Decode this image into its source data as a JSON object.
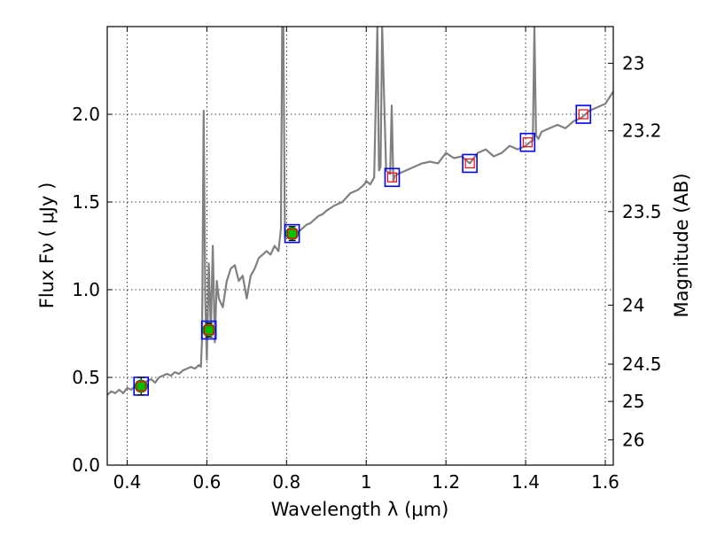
{
  "chart_data": {
    "type": "line",
    "title": "",
    "xlabel": "Wavelength  λ (μm)",
    "ylabel": "Flux  Fν  ( μJy )",
    "y2label": "Magnitude (AB)",
    "xlim": [
      0.35,
      1.62
    ],
    "ylim": [
      0.0,
      2.5
    ],
    "grid": true,
    "x_ticks": [
      {
        "value": 0.4,
        "label": "0.4"
      },
      {
        "value": 0.6,
        "label": "0.6"
      },
      {
        "value": 0.8,
        "label": "0.8"
      },
      {
        "value": 1.0,
        "label": "1"
      },
      {
        "value": 1.2,
        "label": "1.2"
      },
      {
        "value": 1.4,
        "label": "1.4"
      },
      {
        "value": 1.6,
        "label": "1.6"
      }
    ],
    "y_ticks": [
      {
        "value": 0.0,
        "label": "0.0"
      },
      {
        "value": 0.5,
        "label": "0.5"
      },
      {
        "value": 1.0,
        "label": "1.0"
      },
      {
        "value": 1.5,
        "label": "1.5"
      },
      {
        "value": 2.0,
        "label": "2.0"
      }
    ],
    "y2_ticks": [
      {
        "value": 23,
        "label": "23"
      },
      {
        "value": 23.2,
        "label": "23.2"
      },
      {
        "value": 23.5,
        "label": "23.5"
      },
      {
        "value": 24,
        "label": "24"
      },
      {
        "value": 24.5,
        "label": "24.5"
      },
      {
        "value": 25,
        "label": "25"
      },
      {
        "value": 26,
        "label": "26"
      }
    ],
    "colors": {
      "spectrum": "#808080",
      "box": "#0000ff",
      "detection": "#00c000",
      "model_point": "#ff0000",
      "grid": "#000000"
    },
    "spectrum": {
      "x": [
        0.35,
        0.36,
        0.37,
        0.38,
        0.39,
        0.4,
        0.41,
        0.42,
        0.43,
        0.44,
        0.45,
        0.46,
        0.47,
        0.48,
        0.49,
        0.5,
        0.51,
        0.52,
        0.53,
        0.54,
        0.55,
        0.56,
        0.57,
        0.58,
        0.585,
        0.588,
        0.592,
        0.596,
        0.6,
        0.605,
        0.61,
        0.615,
        0.62,
        0.625,
        0.63,
        0.64,
        0.65,
        0.66,
        0.67,
        0.68,
        0.69,
        0.7,
        0.71,
        0.72,
        0.73,
        0.74,
        0.75,
        0.76,
        0.77,
        0.78,
        0.786,
        0.789,
        0.792,
        0.796,
        0.8,
        0.81,
        0.82,
        0.83,
        0.84,
        0.85,
        0.86,
        0.87,
        0.88,
        0.89,
        0.9,
        0.92,
        0.94,
        0.96,
        0.98,
        0.995,
        1.0,
        1.01,
        1.02,
        1.028,
        1.032,
        1.036,
        1.04,
        1.05,
        1.06,
        1.064,
        1.068,
        1.072,
        1.08,
        1.1,
        1.12,
        1.14,
        1.16,
        1.18,
        1.2,
        1.22,
        1.24,
        1.26,
        1.28,
        1.3,
        1.32,
        1.34,
        1.36,
        1.38,
        1.4,
        1.41,
        1.418,
        1.422,
        1.426,
        1.432,
        1.44,
        1.46,
        1.48,
        1.5,
        1.52,
        1.54,
        1.56,
        1.58,
        1.6,
        1.62
      ],
      "y": [
        0.4,
        0.42,
        0.41,
        0.43,
        0.41,
        0.44,
        0.43,
        0.45,
        0.47,
        0.46,
        0.48,
        0.49,
        0.47,
        0.5,
        0.51,
        0.52,
        0.51,
        0.53,
        0.52,
        0.54,
        0.55,
        0.56,
        0.55,
        0.57,
        0.56,
        0.72,
        2.02,
        0.95,
        0.6,
        1.15,
        0.76,
        1.25,
        0.7,
        1.05,
        0.95,
        0.9,
        1.05,
        1.12,
        1.14,
        1.05,
        1.08,
        0.95,
        1.08,
        1.12,
        1.18,
        1.2,
        1.22,
        1.2,
        1.25,
        1.22,
        1.35,
        2.5,
        2.5,
        1.3,
        1.32,
        1.3,
        1.32,
        1.33,
        1.35,
        1.37,
        1.38,
        1.4,
        1.42,
        1.43,
        1.45,
        1.48,
        1.5,
        1.55,
        1.57,
        1.6,
        1.62,
        1.6,
        1.64,
        2.5,
        1.68,
        1.7,
        2.5,
        1.68,
        1.66,
        2.05,
        1.62,
        1.65,
        1.66,
        1.68,
        1.7,
        1.72,
        1.73,
        1.72,
        1.78,
        1.75,
        1.76,
        1.72,
        1.78,
        1.8,
        1.76,
        1.78,
        1.82,
        1.8,
        1.82,
        1.84,
        1.85,
        2.5,
        1.88,
        1.86,
        1.9,
        1.92,
        1.94,
        1.92,
        1.96,
        1.98,
        2.02,
        2.04,
        2.06,
        2.13
      ]
    },
    "detections": [
      {
        "x": 0.435,
        "y": 0.45,
        "err": 0.05
      },
      {
        "x": 0.605,
        "y": 0.77,
        "err": 0.04
      },
      {
        "x": 0.814,
        "y": 1.32,
        "err": 0.04
      }
    ],
    "model_points": [
      {
        "x": 0.435,
        "y": 0.45
      },
      {
        "x": 0.605,
        "y": 0.77
      },
      {
        "x": 0.814,
        "y": 1.32
      },
      {
        "x": 1.065,
        "y": 1.64
      },
      {
        "x": 1.26,
        "y": 1.72
      },
      {
        "x": 1.405,
        "y": 1.84
      },
      {
        "x": 1.545,
        "y": 2.0
      }
    ]
  }
}
